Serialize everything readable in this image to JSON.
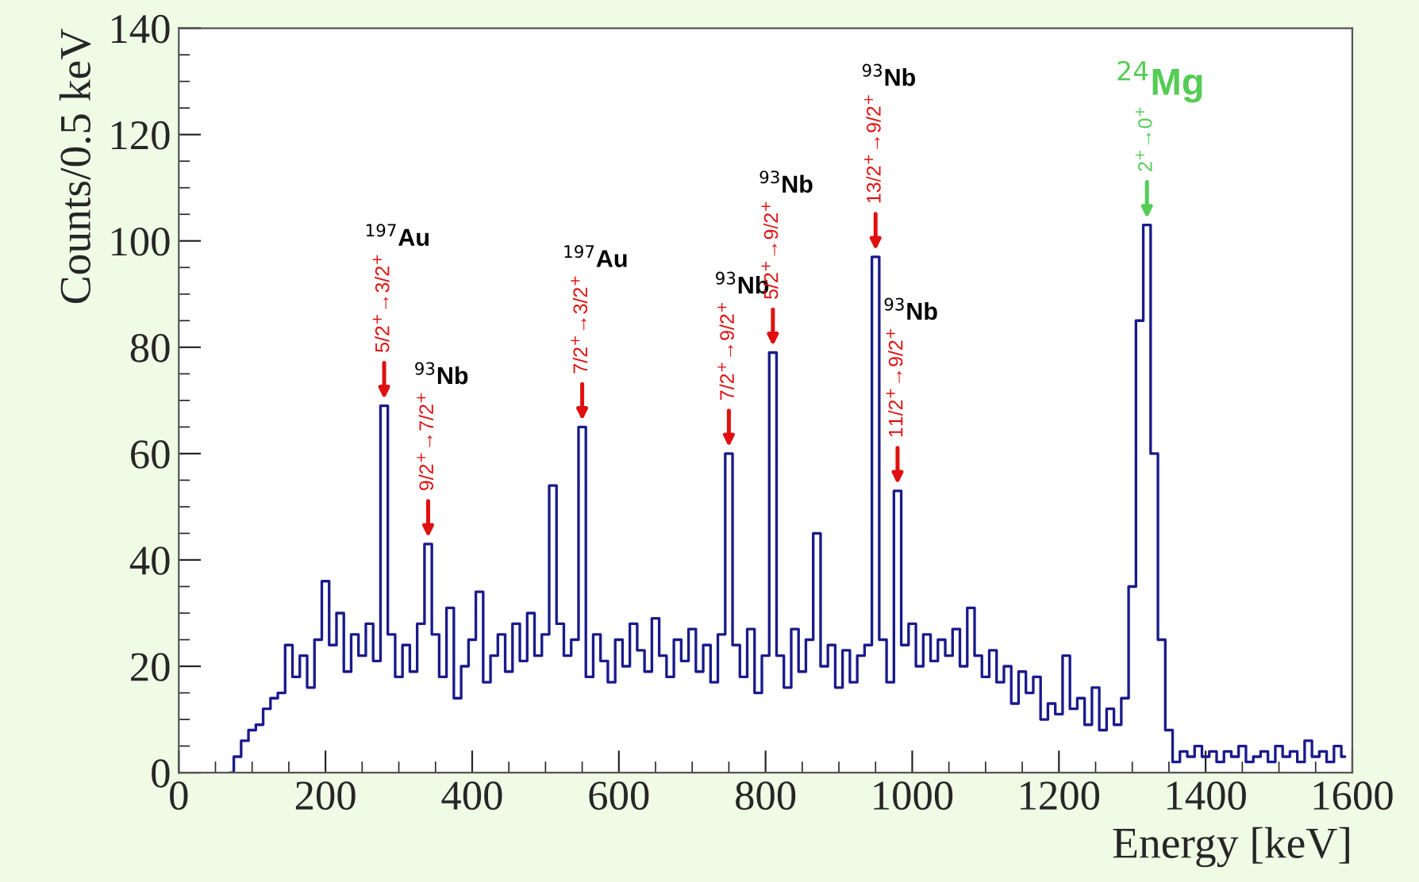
{
  "chart_data": {
    "type": "step",
    "xlabel": "Energy [keV]",
    "ylabel": "Counts/0.5 keV",
    "x": [
      70,
      80,
      90,
      100,
      110,
      120,
      130,
      140,
      150,
      160,
      170,
      180,
      190,
      200,
      210,
      220,
      230,
      240,
      250,
      260,
      270,
      280,
      290,
      300,
      310,
      320,
      330,
      340,
      350,
      360,
      370,
      380,
      390,
      400,
      410,
      420,
      430,
      440,
      450,
      460,
      470,
      480,
      490,
      500,
      510,
      520,
      530,
      540,
      550,
      560,
      570,
      580,
      590,
      600,
      610,
      620,
      630,
      640,
      650,
      660,
      670,
      680,
      690,
      700,
      710,
      720,
      730,
      740,
      750,
      760,
      770,
      780,
      790,
      800,
      810,
      820,
      830,
      840,
      850,
      860,
      870,
      880,
      890,
      900,
      910,
      920,
      930,
      940,
      950,
      960,
      970,
      980,
      990,
      1000,
      1010,
      1020,
      1030,
      1040,
      1050,
      1060,
      1070,
      1080,
      1090,
      1100,
      1110,
      1120,
      1130,
      1140,
      1150,
      1160,
      1170,
      1180,
      1190,
      1200,
      1210,
      1220,
      1230,
      1240,
      1250,
      1260,
      1270,
      1280,
      1290,
      1300,
      1310,
      1320,
      1330,
      1340,
      1350,
      1360,
      1370,
      1380,
      1390,
      1400,
      1410,
      1420,
      1430,
      1440,
      1450,
      1460,
      1470,
      1480,
      1490,
      1500,
      1510,
      1520,
      1530,
      1540,
      1550,
      1560,
      1570,
      1580,
      1590
    ],
    "series": [
      {
        "color": "#1a1a8c",
        "values": [
          0,
          3,
          6,
          8,
          9,
          12,
          14,
          15,
          24,
          18,
          22,
          16,
          25,
          36,
          24,
          30,
          19,
          26,
          22,
          28,
          21,
          69,
          26,
          18,
          24,
          19,
          28,
          43,
          26,
          18,
          31,
          14,
          20,
          25,
          34,
          17,
          22,
          26,
          19,
          28,
          21,
          30,
          22,
          26,
          54,
          28,
          22,
          25,
          65,
          18,
          26,
          21,
          17,
          25,
          20,
          28,
          23,
          19,
          29,
          22,
          18,
          25,
          21,
          27,
          19,
          24,
          17,
          26,
          60,
          24,
          18,
          27,
          15,
          22,
          79,
          22,
          16,
          27,
          19,
          25,
          45,
          20,
          24,
          16,
          23,
          17,
          22,
          24,
          97,
          25,
          17,
          53,
          24,
          28,
          20,
          26,
          21,
          25,
          22,
          27,
          20,
          31,
          22,
          18,
          23,
          17,
          20,
          13,
          19,
          15,
          18,
          10,
          13,
          11,
          22,
          12,
          14,
          9,
          16,
          8,
          12,
          9,
          14,
          35,
          85,
          103,
          60,
          25,
          8,
          2,
          4,
          3,
          5,
          3,
          4,
          2,
          4,
          3,
          5,
          2,
          3,
          4,
          2,
          5,
          3,
          4,
          2,
          6,
          3,
          4,
          2,
          5,
          3
        ]
      }
    ],
    "xlim": [
      0,
      1600
    ],
    "ylim": [
      0,
      140
    ],
    "xticks": [
      0,
      200,
      400,
      600,
      800,
      1000,
      1200,
      1400,
      1600
    ],
    "yticks": [
      0,
      20,
      40,
      60,
      80,
      100,
      120,
      140
    ],
    "grid": false,
    "annotations": [
      "$^{197}$Au",
      {
        "text": "5/2$^{+}$→3/2$^{+}$",
        "x": 280,
        "y": 69
      },
      "$^{93}$Nb",
      {
        "text": "9/2$^{+}$→7/2$^{+}$",
        "x": 340,
        "y": 43
      },
      "$^{197}$Au",
      {
        "text": "7/2$^{+}$→3/2$^{+}$",
        "x": 550,
        "y": 65
      },
      "$^{93}$Nb",
      {
        "text": "7/2$^{+}$→9/2$^{+}$",
        "x": 750,
        "y": 60
      },
      "$^{93}$Nb",
      {
        "text": "5/2$^{+}$→9/2$^{+}$",
        "x": 810,
        "y": 79
      },
      "$^{93}$Nb",
      {
        "text": "13/2$^{+}$→9/2$^{+}$",
        "x": 950,
        "y": 97
      },
      "$^{93}$Nb",
      {
        "text": "11/2$^{+}$→9/2$^{+}$",
        "x": 980,
        "y": 53
      },
      "$^{24}$Mg",
      {
        "text": "2$^{+}$→0$^{+}$",
        "x": 1320,
        "y": 103
      }
    ]
  }
}
